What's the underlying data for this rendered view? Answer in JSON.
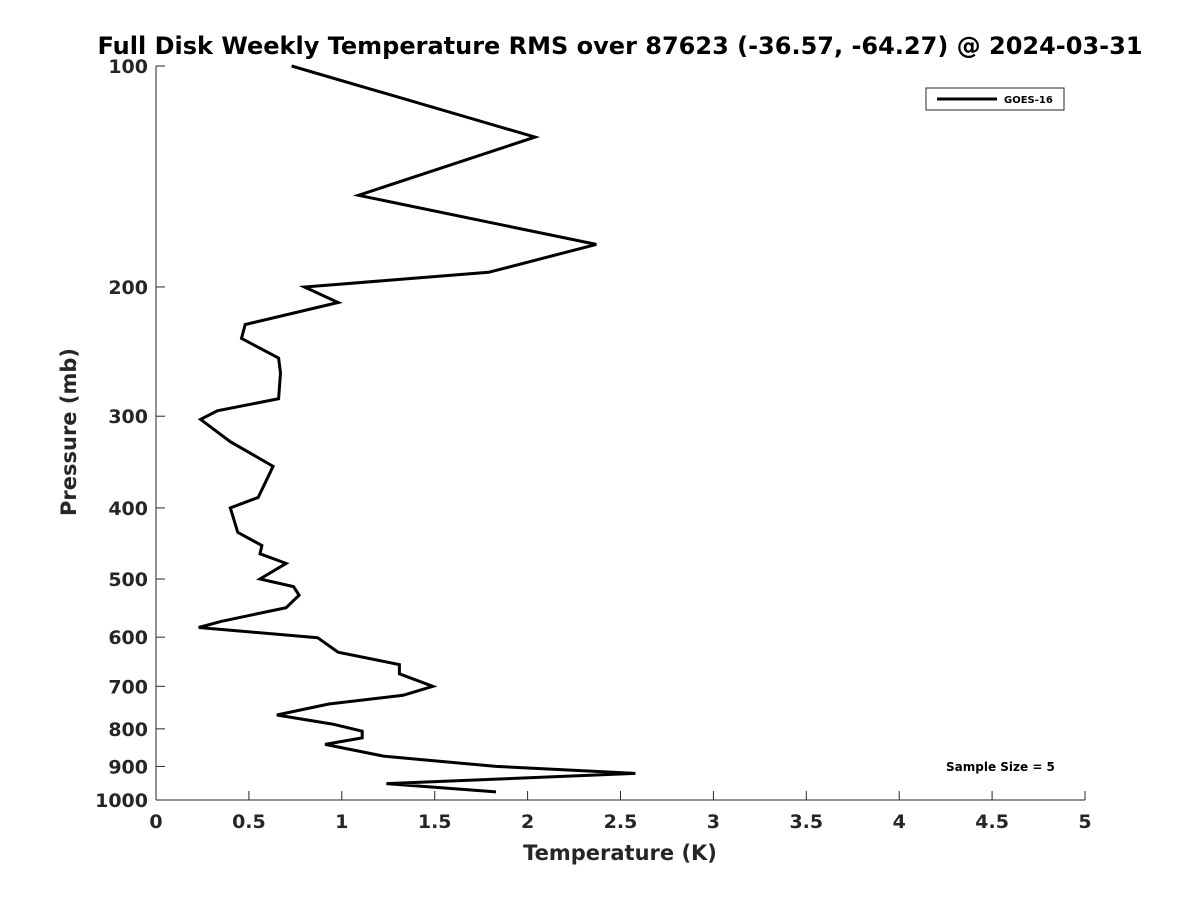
{
  "chart_data": {
    "type": "line",
    "title": "Full Disk Weekly Temperature RMS over 87623 (-36.57, -64.27) @ 2024-03-31",
    "xlabel": "Temperature (K)",
    "ylabel": "Pressure (mb)",
    "xlim": [
      0,
      5
    ],
    "ylim": [
      100,
      1000
    ],
    "y_scale": "log",
    "y_reversed": true,
    "x_ticks": [
      0,
      0.5,
      1,
      1.5,
      2,
      2.5,
      3,
      3.5,
      4,
      4.5,
      5
    ],
    "x_tick_labels": [
      "0",
      "0.5",
      "1",
      "1.5",
      "2",
      "2.5",
      "3",
      "3.5",
      "4",
      "4.5",
      "5"
    ],
    "y_ticks": [
      100,
      200,
      300,
      400,
      500,
      600,
      700,
      800,
      900,
      1000
    ],
    "y_tick_labels": [
      "100",
      "200",
      "300",
      "400",
      "500",
      "600",
      "700",
      "800",
      "900",
      "1000"
    ],
    "grid": false,
    "legend_position": "top-right",
    "annotation": "Sample Size = 5",
    "series": [
      {
        "name": "GOES-16",
        "color": "#000000",
        "points": [
          [
            0.73,
            100
          ],
          [
            2.04,
            125
          ],
          [
            1.09,
            150
          ],
          [
            2.37,
            175
          ],
          [
            1.79,
            191
          ],
          [
            0.8,
            200
          ],
          [
            0.98,
            210
          ],
          [
            0.48,
            225
          ],
          [
            0.46,
            235
          ],
          [
            0.66,
            250
          ],
          [
            0.67,
            262
          ],
          [
            0.66,
            284
          ],
          [
            0.33,
            295
          ],
          [
            0.24,
            303
          ],
          [
            0.4,
            325
          ],
          [
            0.63,
            351
          ],
          [
            0.55,
            387
          ],
          [
            0.4,
            400
          ],
          [
            0.44,
            432
          ],
          [
            0.57,
            450
          ],
          [
            0.56,
            462
          ],
          [
            0.7,
            476
          ],
          [
            0.56,
            500
          ],
          [
            0.74,
            512
          ],
          [
            0.77,
            526
          ],
          [
            0.7,
            547
          ],
          [
            0.35,
            571
          ],
          [
            0.23,
            582
          ],
          [
            0.87,
            601
          ],
          [
            0.98,
            629
          ],
          [
            1.31,
            654
          ],
          [
            1.31,
            673
          ],
          [
            1.49,
            700
          ],
          [
            1.33,
            720
          ],
          [
            0.93,
            740
          ],
          [
            0.65,
            766
          ],
          [
            0.95,
            788
          ],
          [
            1.11,
            806
          ],
          [
            1.11,
            823
          ],
          [
            0.91,
            840
          ],
          [
            1.23,
            872
          ],
          [
            1.83,
            900
          ],
          [
            2.58,
            920
          ],
          [
            1.24,
            950
          ],
          [
            1.83,
            975
          ]
        ]
      }
    ]
  }
}
